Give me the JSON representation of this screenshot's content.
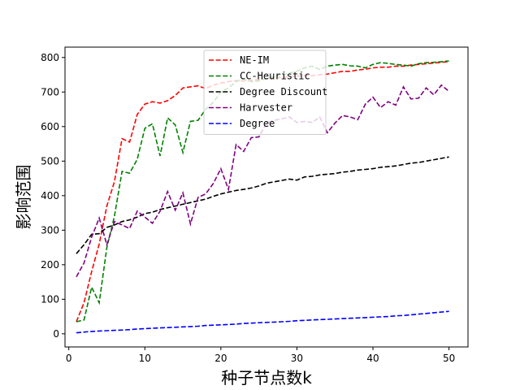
{
  "chart_data": {
    "type": "line",
    "title": "",
    "xlabel": "种子节点数k",
    "ylabel": "影响范围",
    "xlim": [
      -0.5,
      52.5
    ],
    "ylim": [
      -38,
      830
    ],
    "xticks": [
      0,
      10,
      20,
      30,
      40,
      50
    ],
    "yticks": [
      0,
      100,
      200,
      300,
      400,
      500,
      600,
      700,
      800
    ],
    "legend_position": "upper-center",
    "grid": false,
    "x": [
      1,
      2,
      3,
      4,
      5,
      6,
      7,
      8,
      9,
      10,
      11,
      12,
      13,
      14,
      15,
      16,
      17,
      18,
      19,
      20,
      21,
      22,
      23,
      24,
      25,
      26,
      27,
      28,
      29,
      30,
      31,
      32,
      33,
      34,
      35,
      36,
      37,
      38,
      39,
      40,
      41,
      42,
      43,
      44,
      45,
      46,
      47,
      48,
      49,
      50
    ],
    "series": [
      {
        "name": "NE-IM",
        "color": "#ff0000",
        "values": [
          35,
          90,
          180,
          260,
          370,
          440,
          565,
          555,
          635,
          665,
          672,
          668,
          675,
          690,
          712,
          715,
          718,
          710,
          720,
          726,
          730,
          733,
          732,
          734,
          736,
          738,
          740,
          742,
          744,
          746,
          748,
          748,
          750,
          752,
          756,
          760,
          760,
          764,
          766,
          770,
          772,
          772,
          775,
          775,
          778,
          780,
          782,
          784,
          786,
          788
        ]
      },
      {
        "name": "CC-Heuristic",
        "color": "#008000",
        "values": [
          35,
          40,
          135,
          90,
          250,
          340,
          470,
          465,
          505,
          595,
          608,
          515,
          625,
          605,
          525,
          615,
          618,
          650,
          670,
          700,
          712,
          730,
          738,
          730,
          732,
          740,
          745,
          748,
          755,
          760,
          770,
          775,
          765,
          775,
          778,
          780,
          776,
          775,
          770,
          780,
          785,
          783,
          780,
          778,
          775,
          782,
          785,
          786,
          788,
          790
        ]
      },
      {
        "name": "Degree Discount",
        "color": "#000000",
        "values": [
          232,
          258,
          288,
          290,
          308,
          315,
          325,
          330,
          338,
          348,
          352,
          360,
          365,
          370,
          375,
          380,
          385,
          390,
          398,
          405,
          410,
          415,
          418,
          422,
          428,
          436,
          440,
          444,
          448,
          445,
          454,
          456,
          460,
          462,
          464,
          468,
          470,
          474,
          476,
          478,
          482,
          484,
          486,
          490,
          494,
          496,
          500,
          504,
          508,
          512
        ]
      },
      {
        "name": "Harvester",
        "color": "#800080",
        "values": [
          165,
          205,
          280,
          335,
          258,
          325,
          315,
          305,
          355,
          338,
          320,
          355,
          412,
          358,
          408,
          318,
          395,
          405,
          435,
          478,
          418,
          548,
          528,
          568,
          570,
          610,
          618,
          622,
          628,
          612,
          615,
          612,
          628,
          582,
          610,
          632,
          628,
          620,
          665,
          685,
          655,
          672,
          662,
          715,
          680,
          682,
          712,
          692,
          720,
          702
        ]
      },
      {
        "name": "Degree",
        "color": "#0000ff",
        "values": [
          3,
          5,
          7,
          8,
          9,
          10,
          11,
          12,
          14,
          15,
          16,
          17,
          18,
          19,
          20,
          21,
          22,
          24,
          25,
          26,
          27,
          28,
          30,
          31,
          32,
          33,
          34,
          35,
          36,
          38,
          39,
          40,
          41,
          42,
          43,
          44,
          45,
          46,
          47,
          48,
          49,
          50,
          52,
          53,
          55,
          57,
          59,
          61,
          63,
          65
        ]
      }
    ]
  }
}
